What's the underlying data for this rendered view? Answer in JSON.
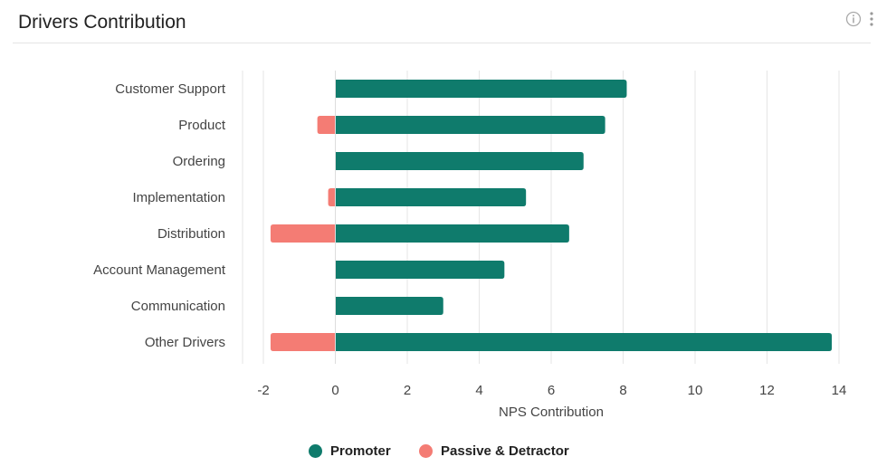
{
  "header": {
    "title": "Drivers Contribution",
    "info_icon": "info-circle-icon",
    "menu_icon": "more-vertical-icon"
  },
  "chart_data": {
    "type": "bar",
    "orientation": "horizontal",
    "stacked": true,
    "categories": [
      "Customer Support",
      "Product",
      "Ordering",
      "Implementation",
      "Distribution",
      "Account Management",
      "Communication",
      "Other Drivers"
    ],
    "series": [
      {
        "name": "Promoter",
        "color": "#0f7b6c",
        "values": [
          8.1,
          7.5,
          6.9,
          5.3,
          6.5,
          4.7,
          3.0,
          13.8
        ]
      },
      {
        "name": "Passive & Detractor",
        "color": "#f47c74",
        "values": [
          0,
          -0.5,
          0,
          -0.2,
          -1.8,
          0,
          0,
          -1.8
        ]
      }
    ],
    "xlabel": "NPS Contribution",
    "ylabel": "",
    "xlim": [
      -2,
      14
    ],
    "xticks": [
      -2,
      0,
      2,
      4,
      6,
      8,
      10,
      12,
      14
    ],
    "grid": true,
    "legend_position": "bottom"
  }
}
